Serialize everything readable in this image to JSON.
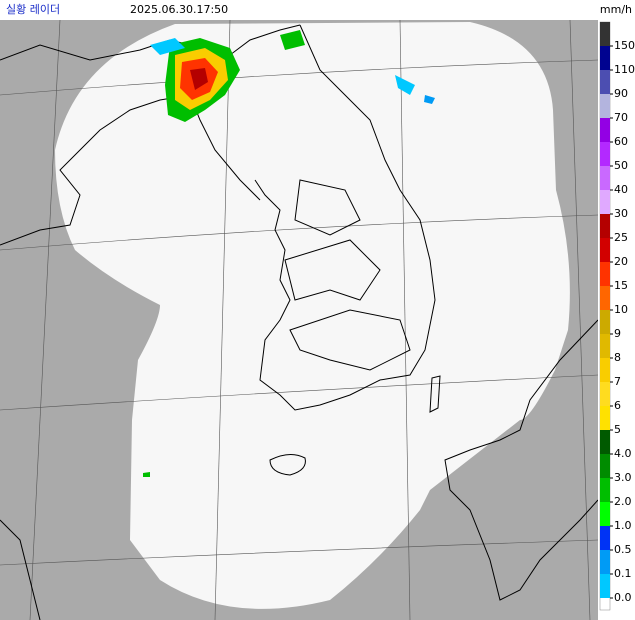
{
  "header": {
    "title": "실황 레이더",
    "time": "2025.06.30.17:50",
    "unit": "mm/h"
  },
  "legend": {
    "items": [
      {
        "label": "150",
        "color": "#333333"
      },
      {
        "label": "110",
        "color": "#000390"
      },
      {
        "label": "90",
        "color": "#4c4eb1"
      },
      {
        "label": "70",
        "color": "#b3b4de"
      },
      {
        "label": "60",
        "color": "#9300e4"
      },
      {
        "label": "50",
        "color": "#b329ff"
      },
      {
        "label": "40",
        "color": "#c969ff"
      },
      {
        "label": "30",
        "color": "#e0a9ff"
      },
      {
        "label": "25",
        "color": "#b40000"
      },
      {
        "label": "20",
        "color": "#d20000"
      },
      {
        "label": "15",
        "color": "#ff3300"
      },
      {
        "label": "10",
        "color": "#ff6600"
      },
      {
        "label": "9",
        "color": "#ccaa00"
      },
      {
        "label": "8",
        "color": "#e0b900"
      },
      {
        "label": "7",
        "color": "#f9cd00"
      },
      {
        "label": "6",
        "color": "#ffdc1f"
      },
      {
        "label": "5",
        "color": "#ffe100"
      },
      {
        "label": "4.0",
        "color": "#005a00"
      },
      {
        "label": "3.0",
        "color": "#008c00"
      },
      {
        "label": "2.0",
        "color": "#00be00"
      },
      {
        "label": "1.0",
        "color": "#00ff00"
      },
      {
        "label": "0.5",
        "color": "#0033f5"
      },
      {
        "label": "0.1",
        "color": "#009bf5"
      },
      {
        "label": "0.0",
        "color": "#00c8ff"
      }
    ]
  }
}
